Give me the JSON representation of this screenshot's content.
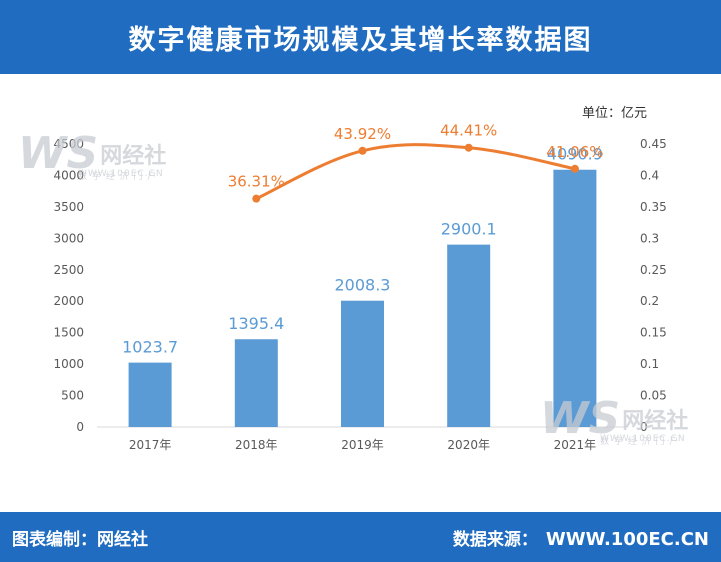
{
  "header": {
    "title": "数字健康市场规模及其增长率数据图"
  },
  "chart_data": {
    "type": "bar+line",
    "unit_label": "单位：亿元",
    "categories": [
      "2017年",
      "2018年",
      "2019年",
      "2020年",
      "2021年"
    ],
    "series": [
      {
        "type": "bar",
        "values": [
          1023.7,
          1395.4,
          2008.3,
          2900.1,
          4090.9
        ],
        "value_labels": [
          "1023.7",
          "1395.4",
          "2008.3",
          "2900.1",
          "4090.9"
        ],
        "color": "#5b9bd5"
      },
      {
        "type": "line",
        "axis": "right",
        "values": [
          null,
          0.3631,
          0.4392,
          0.4441,
          0.4106
        ],
        "value_labels": [
          "",
          "36.31%",
          "43.92%",
          "44.41%",
          "41.06%"
        ],
        "color": "#ed7d31"
      }
    ],
    "left_axis": {
      "ylim": [
        0,
        4500
      ],
      "ticks": [
        "0",
        "500",
        "1000",
        "1500",
        "2000",
        "2500",
        "3000",
        "3500",
        "4000",
        "4500"
      ]
    },
    "right_axis": {
      "ylim": [
        0,
        0.45
      ],
      "ticks": [
        "0",
        "0.05",
        "0.1",
        "0.15",
        "0.2",
        "0.25",
        "0.3",
        "0.35",
        "0.4",
        "0.45"
      ]
    },
    "grid": false
  },
  "watermark": {
    "logo": "WS",
    "name": "网经社",
    "domain": "WWW.100EC.CN",
    "tagline": "数 字 经 济 门 户"
  },
  "footer": {
    "left": "图表编制：网经社",
    "right_label": "数据来源：",
    "right_url": "WWW.100EC.CN"
  },
  "colors": {
    "brand": "#1f6cc1",
    "bar": "#5b9bd5",
    "line": "#ed7d31"
  }
}
